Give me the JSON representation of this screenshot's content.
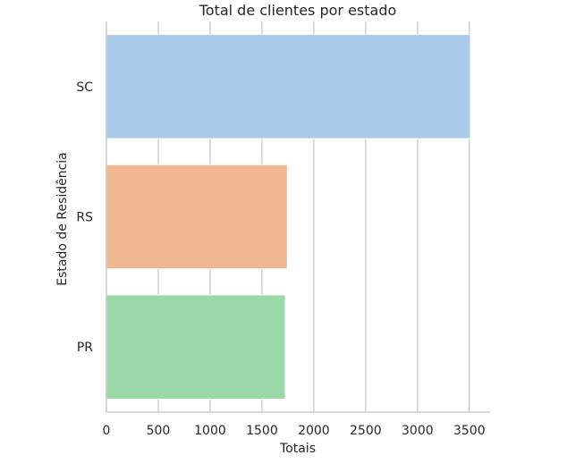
{
  "chart_data": {
    "type": "bar",
    "orientation": "horizontal",
    "title": "Total de clientes por estado",
    "xlabel": "Totais",
    "ylabel": "Estado de Residência",
    "categories": [
      "SC",
      "RS",
      "PR"
    ],
    "values": [
      3510,
      1745,
      1725
    ],
    "colors": [
      "#abcaea",
      "#f0b793",
      "#9bd8a7"
    ],
    "xlim": [
      0,
      3700
    ],
    "xticks": [
      0,
      500,
      1000,
      1500,
      2000,
      2500,
      3000,
      3500
    ],
    "xtick_labels": [
      "0",
      "500",
      "1000",
      "1500",
      "2000",
      "2500",
      "3000",
      "3500"
    ],
    "grid": "vertical",
    "grid_color": "#cccccc",
    "legend": "none"
  }
}
